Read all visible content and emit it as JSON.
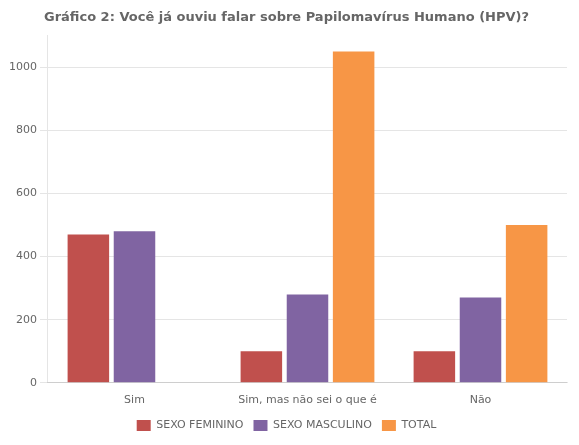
{
  "chart_data": {
    "type": "bar",
    "title": "Gráfico 2: Você já ouviu falar sobre Papilomavírus Humano (HPV)?",
    "categories": [
      "Sim",
      "Sim, mas não sei o que é",
      "Não"
    ],
    "series": [
      {
        "name": "SEXO FEMININO",
        "color": "#C0504D",
        "values": [
          470,
          100,
          100
        ]
      },
      {
        "name": "SEXO MASCULINO",
        "color": "#8064A2",
        "values": [
          480,
          280,
          270
        ]
      },
      {
        "name": "TOTAL",
        "color": "#F79646",
        "values": [
          0,
          1050,
          500
        ]
      }
    ],
    "ylim": [
      0,
      1100
    ],
    "yticks": [
      0,
      200,
      400,
      600,
      800,
      1000
    ],
    "grid": true,
    "legend": "bottom"
  }
}
